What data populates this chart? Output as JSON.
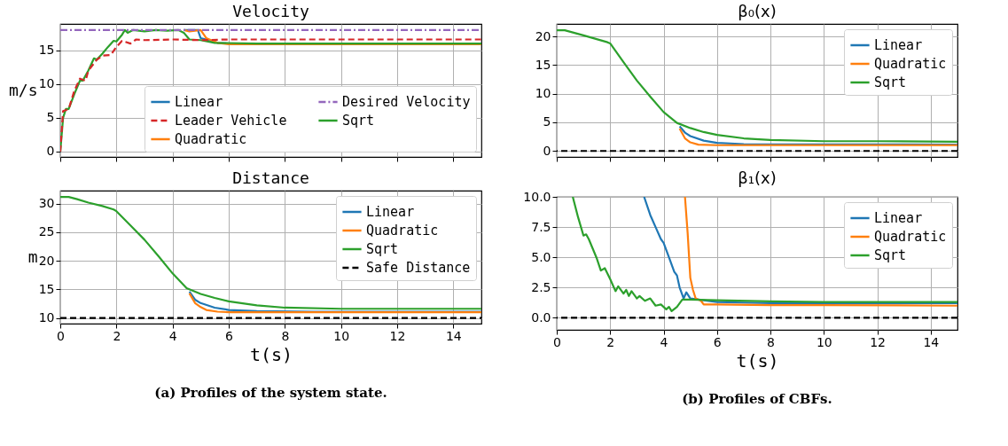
{
  "chart_data": [
    {
      "type": "line",
      "title": "Velocity",
      "ylabel": "m/s",
      "xlim": [
        0,
        15
      ],
      "ylim": [
        -0.8,
        18.9
      ],
      "xticks": [
        0,
        2,
        4,
        6,
        8,
        10,
        12,
        14
      ],
      "yticks": [
        0,
        5,
        10,
        15
      ],
      "tick_labels": "y",
      "grid": true,
      "legend": "bottom right",
      "line_style": "solid",
      "series": [
        {
          "name": "Linear",
          "color": "#1f77b4",
          "x": [
            4.4,
            4.9,
            5,
            5.2,
            5.6,
            6
          ],
          "values": [
            18,
            18,
            16.8,
            16.6,
            16.1,
            16
          ]
        },
        {
          "name": "Quadratic",
          "color": "#ff7f0e",
          "x": [
            4.4,
            4.6,
            5,
            5.2,
            5.6,
            6,
            15
          ],
          "values": [
            18,
            17.8,
            18,
            16.8,
            16.1,
            15.9,
            15.9
          ]
        },
        {
          "name": "Sqrt",
          "color": "#2ca02c",
          "x": [
            0,
            0.1,
            0.2,
            0.3,
            0.5,
            0.7,
            0.8,
            1,
            1.2,
            1.3,
            1.5,
            1.7,
            1.9,
            2,
            2.2,
            2.3,
            2.4,
            2.6,
            3,
            3.4,
            3.8,
            4.2,
            4.4,
            4.6,
            5,
            5.5,
            7,
            10,
            15
          ],
          "values": [
            0,
            5,
            6.3,
            6.3,
            8.5,
            10.5,
            10.5,
            12,
            13.8,
            13.6,
            14.5,
            15.5,
            16.4,
            16.3,
            17.3,
            18,
            17.6,
            18,
            17.8,
            18,
            17.9,
            18,
            17.6,
            16.6,
            16.5,
            16.1,
            16,
            16,
            16
          ]
        },
        {
          "name": "Leader Vehicle",
          "color": "#d62728",
          "line_style": "dashed",
          "x": [
            0,
            0.1,
            0.3,
            0.5,
            0.7,
            0.9,
            1,
            1.3,
            1.5,
            1.8,
            2,
            2.2,
            2.5,
            2.7,
            3,
            4,
            5,
            6,
            8,
            10,
            12,
            15
          ],
          "values": [
            0,
            6,
            6.3,
            9,
            10.8,
            10.5,
            12,
            13.6,
            14.2,
            14.3,
            15.5,
            16.4,
            16,
            16.6,
            16.5,
            16.6,
            16.5,
            16.6,
            16.6,
            16.6,
            16.6,
            16.6
          ]
        }
      ],
      "ref_lines": [
        {
          "axis": "y",
          "value": 18,
          "label": "Desired Velocity",
          "color": "#9467bd",
          "line_style": "dashdot"
        }
      ]
    },
    {
      "type": "line",
      "title": "Distance",
      "xlabel": "t(s)",
      "ylabel": "m",
      "xlim": [
        0,
        15
      ],
      "ylim": [
        9,
        32.3
      ],
      "xticks": [
        0,
        2,
        4,
        6,
        8,
        10,
        12,
        14
      ],
      "yticks": [
        10,
        15,
        20,
        25,
        30
      ],
      "grid": true,
      "legend": "top right",
      "line_style": "solid",
      "series": [
        {
          "name": "Linear",
          "color": "#1f77b4",
          "x": [
            4.6,
            4.8,
            5,
            5.5,
            6,
            7,
            9,
            15
          ],
          "values": [
            14.6,
            13.2,
            12.6,
            11.8,
            11.4,
            11.2,
            11.1,
            11.1
          ]
        },
        {
          "name": "Quadratic",
          "color": "#ff7f0e",
          "x": [
            4.6,
            4.8,
            5,
            5.2,
            5.6,
            6,
            15
          ],
          "values": [
            14.3,
            12.6,
            11.9,
            11.4,
            11.1,
            11,
            11
          ]
        },
        {
          "name": "Sqrt",
          "color": "#2ca02c",
          "x": [
            0,
            0.3,
            0.6,
            1,
            1.5,
            1.9,
            2,
            2.5,
            3,
            3.5,
            4,
            4.5,
            5,
            5.5,
            6,
            7,
            8,
            10,
            12,
            15
          ],
          "values": [
            31.2,
            31.2,
            30.8,
            30.2,
            29.6,
            29,
            28.7,
            26.2,
            23.7,
            20.8,
            17.8,
            15.2,
            14.2,
            13.5,
            12.9,
            12.2,
            11.8,
            11.6,
            11.6,
            11.6
          ]
        }
      ],
      "ref_lines": [
        {
          "axis": "y",
          "value": 10,
          "label": "Safe Distance",
          "color": "#000000",
          "line_style": "dashed"
        }
      ],
      "annotations": [
        "(a) Profiles of the system state."
      ]
    },
    {
      "type": "line",
      "title": "β₀(x)",
      "xlim": [
        0,
        15
      ],
      "ylim": [
        -1.05,
        22.2
      ],
      "xticks": [
        0,
        2,
        4,
        6,
        8,
        10,
        12,
        14
      ],
      "yticks": [
        0,
        5,
        10,
        15,
        20
      ],
      "tick_labels": "y",
      "grid": true,
      "legend": "top right",
      "line_style": "solid",
      "series": [
        {
          "name": "Linear",
          "color": "#1f77b4",
          "x": [
            4.6,
            4.8,
            5,
            5.5,
            6,
            7,
            15
          ],
          "values": [
            4.3,
            3.2,
            2.6,
            1.8,
            1.4,
            1.2,
            1.1
          ]
        },
        {
          "name": "Quadratic",
          "color": "#ff7f0e",
          "x": [
            4.6,
            4.8,
            5,
            5.3,
            6,
            15
          ],
          "values": [
            3.9,
            2.2,
            1.5,
            1.1,
            1,
            1
          ]
        },
        {
          "name": "Sqrt",
          "color": "#2ca02c",
          "x": [
            0,
            0.3,
            1,
            1.9,
            2,
            2.5,
            3,
            3.5,
            4,
            4.5,
            5,
            5.5,
            6,
            7,
            8,
            10,
            12,
            15
          ],
          "values": [
            21.1,
            21.1,
            20.2,
            19,
            18.8,
            15.5,
            12.3,
            9.5,
            6.8,
            4.9,
            4,
            3.3,
            2.8,
            2.2,
            1.9,
            1.7,
            1.7,
            1.6
          ]
        }
      ],
      "ref_lines": [
        {
          "axis": "y",
          "value": 0,
          "color": "#000000",
          "line_style": "dashed"
        }
      ]
    },
    {
      "type": "line",
      "title": "β₁(x)",
      "xlabel": "t(s)",
      "xlim": [
        0,
        15
      ],
      "ylim": [
        -1,
        10
      ],
      "xticks": [
        0,
        2,
        4,
        6,
        8,
        10,
        12,
        14
      ],
      "yticks": [
        {
          "value": 0,
          "label": "0.0"
        },
        {
          "value": 2.5,
          "label": "2.5"
        },
        {
          "value": 5,
          "label": "5.0"
        },
        {
          "value": 7.5,
          "label": "7.5"
        },
        {
          "value": 10,
          "label": "10.0"
        }
      ],
      "grid": true,
      "legend": "top right",
      "line_style": "solid",
      "series": [
        {
          "name": "Linear",
          "color": "#1f77b4",
          "x": [
            3.27,
            3.5,
            3.7,
            3.9,
            4,
            4.2,
            4.4,
            4.5,
            4.6,
            4.75,
            4.85,
            5,
            5.5,
            6,
            8,
            15
          ],
          "values": [
            10,
            8.5,
            7.5,
            6.5,
            6.2,
            5,
            3.8,
            3.5,
            2.5,
            1.6,
            2.1,
            1.6,
            1.45,
            1.3,
            1.2,
            1.2
          ]
        },
        {
          "name": "Quadratic",
          "color": "#ff7f0e",
          "x": [
            4.8,
            4.9,
            5,
            5.1,
            5.2,
            5.4,
            5.5,
            6,
            8,
            10,
            15
          ],
          "values": [
            10,
            7,
            3.3,
            2.3,
            1.6,
            1.4,
            1.1,
            1.1,
            1.05,
            1.05,
            1
          ]
        },
        {
          "name": "Sqrt",
          "color": "#2ca02c",
          "x": [
            0.6,
            0.8,
            1,
            1.1,
            1.2,
            1.5,
            1.65,
            1.8,
            2,
            2.2,
            2.3,
            2.5,
            2.6,
            2.7,
            2.8,
            3,
            3.1,
            3.3,
            3.5,
            3.7,
            3.9,
            4.1,
            4.2,
            4.3,
            4.5,
            4.7,
            5,
            6,
            8,
            10,
            15
          ],
          "values": [
            10,
            8.3,
            6.8,
            6.9,
            6.5,
            4.9,
            3.9,
            4.1,
            3.2,
            2.2,
            2.6,
            2,
            2.3,
            1.8,
            2.2,
            1.6,
            1.8,
            1.4,
            1.6,
            1,
            1.1,
            0.7,
            0.9,
            0.55,
            0.9,
            1.5,
            1.5,
            1.45,
            1.35,
            1.3,
            1.3
          ]
        }
      ],
      "ref_lines": [
        {
          "axis": "y",
          "value": 0,
          "color": "#000000",
          "line_style": "dashed"
        }
      ],
      "annotations": [
        "(b) Profiles of CBFs."
      ]
    }
  ]
}
